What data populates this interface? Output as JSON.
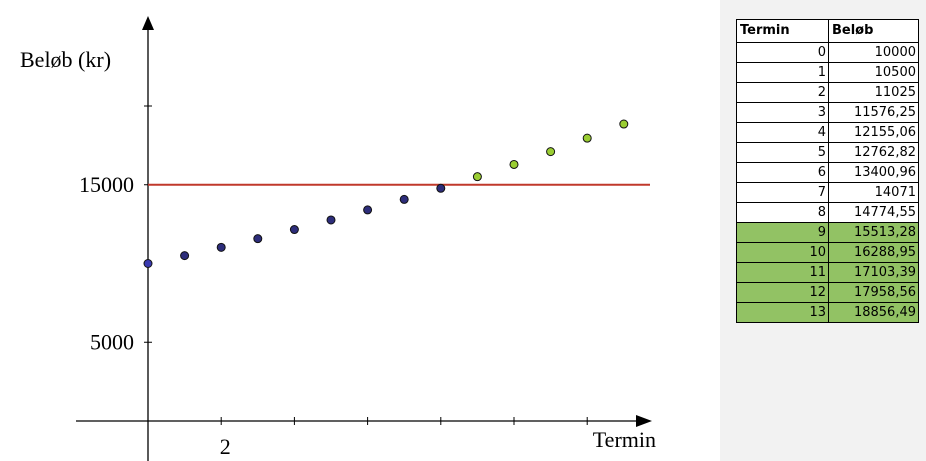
{
  "chart_data": {
    "type": "scatter",
    "ylabel": "Beløb (kr)",
    "xlabel": "Termin",
    "x_tick_labels": [
      {
        "x": 2,
        "label": "2"
      }
    ],
    "y_tick_labels": [
      {
        "y": 5000,
        "label": "5000"
      },
      {
        "y": 15000,
        "label": "15000"
      }
    ],
    "threshold_line": {
      "y": 15000,
      "color": "#c0392b"
    },
    "series": [
      {
        "color": "#2d2d7a",
        "points": [
          {
            "x": 0,
            "y": 10000
          },
          {
            "x": 1,
            "y": 10500
          },
          {
            "x": 2,
            "y": 11025
          },
          {
            "x": 3,
            "y": 11576.25
          },
          {
            "x": 4,
            "y": 12155.06
          },
          {
            "x": 5,
            "y": 12762.82
          },
          {
            "x": 6,
            "y": 13400.96
          },
          {
            "x": 7,
            "y": 14071
          },
          {
            "x": 8,
            "y": 14774.55
          }
        ]
      },
      {
        "color": "#9acd32",
        "points": [
          {
            "x": 9,
            "y": 15513.28
          },
          {
            "x": 10,
            "y": 16288.95
          },
          {
            "x": 11,
            "y": 17103.39
          },
          {
            "x": 12,
            "y": 17958.56
          },
          {
            "x": 13,
            "y": 18856.49
          }
        ]
      }
    ]
  },
  "table": {
    "headers": [
      "Termin",
      "Beløb"
    ],
    "rows": [
      {
        "termin": "0",
        "belob": "10000",
        "highlight": false
      },
      {
        "termin": "1",
        "belob": "10500",
        "highlight": false
      },
      {
        "termin": "2",
        "belob": "11025",
        "highlight": false
      },
      {
        "termin": "3",
        "belob": "11576,25",
        "highlight": false
      },
      {
        "termin": "4",
        "belob": "12155,06",
        "highlight": false
      },
      {
        "termin": "5",
        "belob": "12762,82",
        "highlight": false
      },
      {
        "termin": "6",
        "belob": "13400,96",
        "highlight": false
      },
      {
        "termin": "7",
        "belob": "14071",
        "highlight": false
      },
      {
        "termin": "8",
        "belob": "14774,55",
        "highlight": false
      },
      {
        "termin": "9",
        "belob": "15513,28",
        "highlight": true
      },
      {
        "termin": "10",
        "belob": "16288,95",
        "highlight": true
      },
      {
        "termin": "11",
        "belob": "17103,39",
        "highlight": true
      },
      {
        "termin": "12",
        "belob": "17958,56",
        "highlight": true
      },
      {
        "termin": "13",
        "belob": "18856,49",
        "highlight": true
      }
    ],
    "highlight_color": "#92c264"
  }
}
